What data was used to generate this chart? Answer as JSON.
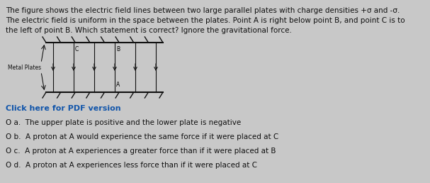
{
  "background_color": "#c8c8c8",
  "description_lines": [
    "The figure shows the electric field lines between two large parallel plates with charge densities +σ and -σ.",
    "The electric field is uniform in the space between the plates. Point A is right below point B, and point C is to",
    "the left of point B. Which statement is correct? Ignore the gravitational force."
  ],
  "plate_label": "Metal Plates",
  "click_link": "Click here for PDF version",
  "options": [
    "O a.  The upper plate is positive and the lower plate is negative",
    "O b.  A proton at A would experience the same force if it were placed at C",
    "O c.  A proton at A experiences a greater force than if it were placed at B",
    "O d.  A proton at A experiences less force than if it were placed at C"
  ],
  "desc_fontsize": 7.5,
  "option_fontsize": 7.5,
  "link_fontsize": 8.0,
  "link_color": "#1155aa",
  "plate_color": "#111111",
  "field_line_color": "#111111",
  "text_color": "#111111"
}
